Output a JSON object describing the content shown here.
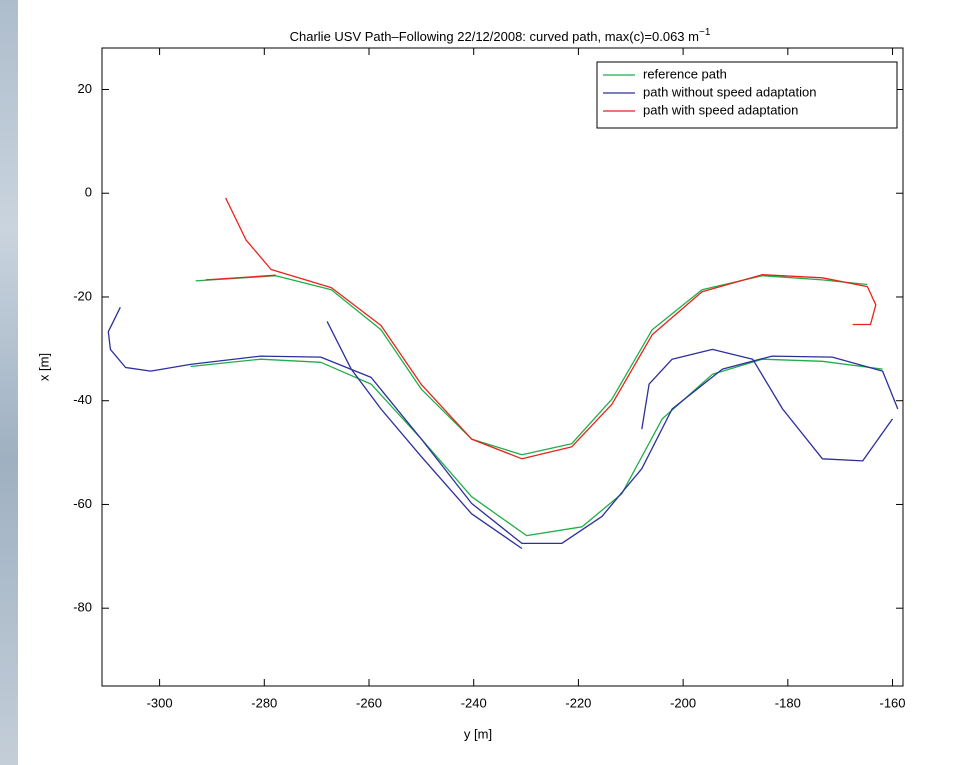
{
  "chart_data": {
    "type": "line",
    "title": "Charlie USV Path–Following 22/12/2008: curved path, max(c)=0.063 m",
    "title_superscript": "−1",
    "x_label": "y [m]",
    "y_label": "x [m]",
    "xlim": [
      -311,
      -158
    ],
    "ylim": [
      -95,
      28
    ],
    "xticks": [
      -300,
      -280,
      -260,
      -240,
      -220,
      -200,
      -180,
      -160
    ],
    "yticks": [
      20,
      0,
      -20,
      -40,
      -60,
      -80
    ],
    "grid": false,
    "legend": "upper right",
    "series": [
      {
        "name": "reference path",
        "color": "#1fae4a",
        "x": [
          -293.1,
          -277.8,
          -267.2,
          -257.7,
          -250,
          -240.4,
          -230.8,
          -221.3,
          -213.6,
          -205.9,
          -196.4,
          -184.9,
          -173.4,
          -164.8,
          null,
          -294.1,
          -280.7,
          -269.2,
          -259.6,
          -250,
          -240.4,
          -229.9,
          -219.3,
          -211.7,
          -204,
          -194.4,
          -184.9,
          -173.4,
          -161.9
        ],
        "values": [
          -16.9,
          -15.9,
          -18.6,
          -26.3,
          -37.8,
          -47.4,
          -50.4,
          -48.3,
          -39.7,
          -26.3,
          -18.6,
          -15.9,
          -16.7,
          -17.6,
          null,
          -33.4,
          -32,
          -32.6,
          -36.8,
          -47.4,
          -58.5,
          -66,
          -64.3,
          -57.9,
          -43.5,
          -34.9,
          -32,
          -32.4,
          -33.9
        ]
      },
      {
        "name": "path without speed adaptation",
        "color": "#2c2f9c",
        "x": [
          -307.5,
          -309.8,
          -309.4,
          -306.5,
          -301.7,
          -294.1,
          -280.7,
          -269.2,
          -259.6,
          -250,
          -240.4,
          -230.8,
          -223.2,
          -215.5,
          -207.9,
          -202.1,
          -192.5,
          -183,
          -171.5,
          -161.9,
          -159,
          null,
          -268,
          -263.4,
          -257.7,
          -250,
          -240.4,
          -230.8,
          null,
          -207.9,
          -206.5,
          -202.1,
          -194.4,
          -186.7,
          -181,
          -173.4,
          -165.7,
          -160
        ],
        "values": [
          -22,
          -26.7,
          -30.1,
          -33.6,
          -34.3,
          -33,
          -31.4,
          -31.6,
          -35.5,
          -47.4,
          -59.8,
          -67.5,
          -67.5,
          -62.3,
          -53.1,
          -41.6,
          -33.9,
          -31.4,
          -31.6,
          -34.3,
          -41.6,
          null,
          -24.7,
          -33.9,
          -41.6,
          -50.8,
          -61.8,
          -68.5,
          null,
          -45.5,
          -36.8,
          -32,
          -30.1,
          -32,
          -41.6,
          -51.2,
          -51.6,
          -43.5
        ]
      },
      {
        "name": "path with speed adaptation",
        "color": "#e8231b",
        "x": [
          -291.2,
          -277.8,
          null,
          -287.4,
          -283.5,
          -278.7,
          -267.2,
          -257.7,
          -250,
          -240.4,
          -230.8,
          -221.3,
          -213.6,
          -205.9,
          -196.4,
          -184.9,
          -173.4,
          -164.8,
          -163.2,
          -164.2,
          -167.6
        ],
        "values": [
          -16.7,
          -15.8,
          null,
          -0.9,
          -9,
          -14.7,
          -18.2,
          -25.5,
          -36.9,
          -47.4,
          -51.2,
          -48.9,
          -40.7,
          -27.3,
          -19,
          -15.7,
          -16.3,
          -18,
          -21.5,
          -25.3,
          -25.3
        ]
      }
    ]
  }
}
